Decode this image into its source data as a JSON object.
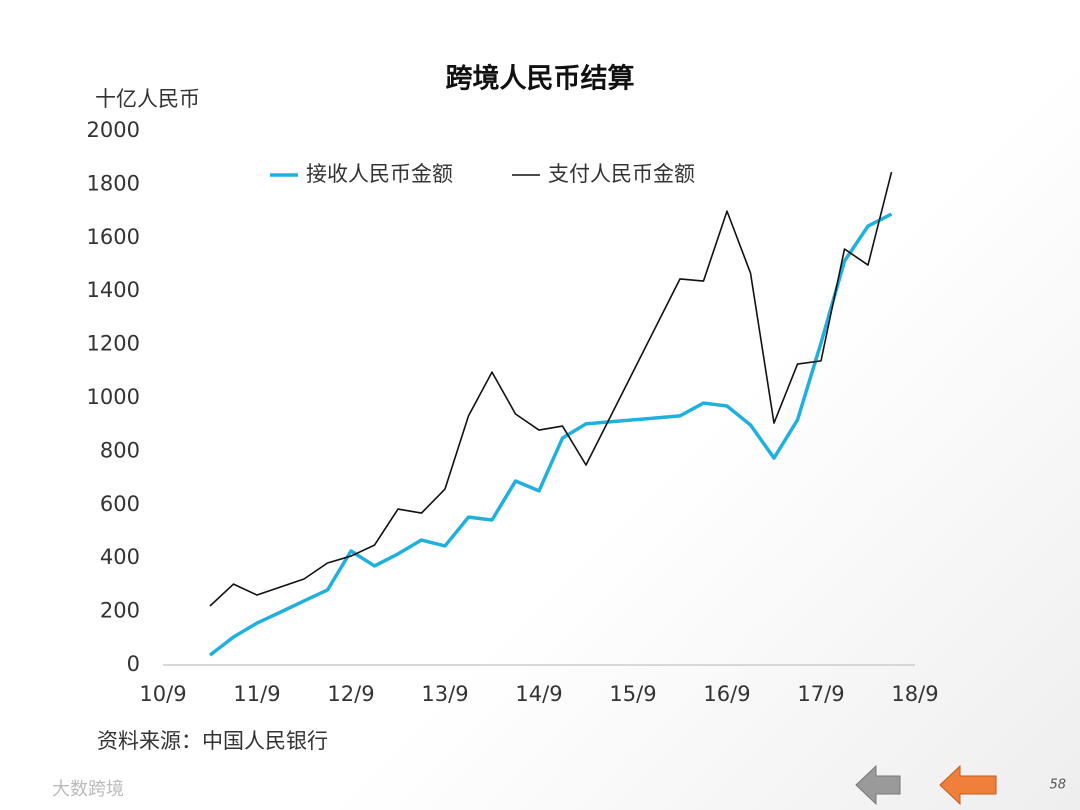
{
  "chart_data": {
    "type": "line",
    "title": "跨境人民币结算",
    "y_label": "十亿人民币",
    "source": "资料来源：中国人民银行",
    "x": [
      2011.25,
      2011.5,
      2011.75,
      2012.0,
      2012.25,
      2012.5,
      2012.75,
      2013.0,
      2013.25,
      2013.5,
      2013.75,
      2014.0,
      2014.25,
      2014.5,
      2014.75,
      2015.0,
      2015.25,
      2016.25,
      2016.5,
      2016.75,
      2017.0,
      2017.25,
      2017.5,
      2017.75,
      2018.0,
      2018.25,
      2018.5
    ],
    "series": [
      {
        "name": "接收人民币金额",
        "color": "#1fb0de",
        "width": 3.5,
        "values": [
          37,
          105,
          157,
          198,
          240,
          281,
          427,
          371,
          416,
          468,
          446,
          554,
          543,
          689,
          652,
          850,
          903,
          933,
          981,
          970,
          899,
          775,
          918,
          1206,
          1513,
          1644,
          1689
        ]
      },
      {
        "name": "支付人民币金额",
        "color": "#111111",
        "width": 1.6,
        "values": [
          221,
          303,
          262,
          292,
          322,
          382,
          408,
          449,
          584,
          569,
          659,
          933,
          1097,
          940,
          880,
          895,
          749,
          1446,
          1438,
          1700,
          1468,
          906,
          1127,
          1139,
          1558,
          1498,
          1846
        ]
      }
    ],
    "xlim": [
      2010.75,
      2018.75
    ],
    "xticks": [
      {
        "value": 2010.75,
        "label": "10/9"
      },
      {
        "value": 2011.75,
        "label": "11/9"
      },
      {
        "value": 2012.75,
        "label": "12/9"
      },
      {
        "value": 2013.75,
        "label": "13/9"
      },
      {
        "value": 2014.75,
        "label": "14/9"
      },
      {
        "value": 2015.75,
        "label": "15/9"
      },
      {
        "value": 2016.75,
        "label": "16/9"
      },
      {
        "value": 2017.75,
        "label": "17/9"
      },
      {
        "value": 2018.75,
        "label": "18/9"
      }
    ],
    "ylim": [
      0,
      2000
    ],
    "yticks": [
      0,
      200,
      400,
      600,
      800,
      1000,
      1200,
      1400,
      1600,
      1800,
      2000
    ],
    "legend": "top",
    "page_number": "58",
    "watermark": "大数跨境"
  }
}
